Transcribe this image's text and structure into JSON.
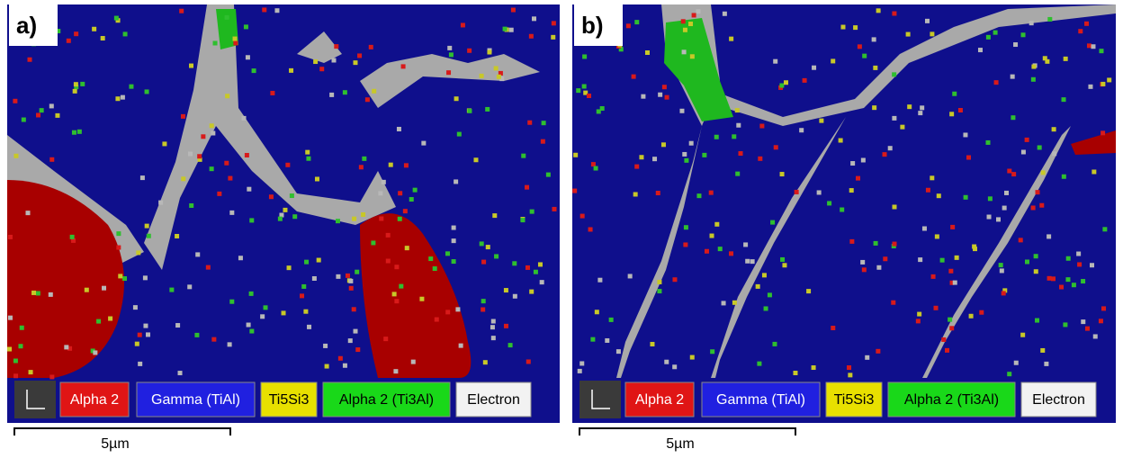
{
  "panels": [
    {
      "label": "a)",
      "legend": [
        "Alpha 2",
        "Gamma (TiAl)",
        "Ti5Si3",
        "Alpha 2 (Ti3Al)",
        "Electron"
      ],
      "scale_bar": "5µm"
    },
    {
      "label": "b)",
      "legend": [
        "Alpha 2",
        "Gamma (TiAl)",
        "Ti5Si3",
        "Alpha 2 (Ti3Al)",
        "Electron"
      ],
      "scale_bar": "5µm"
    }
  ]
}
